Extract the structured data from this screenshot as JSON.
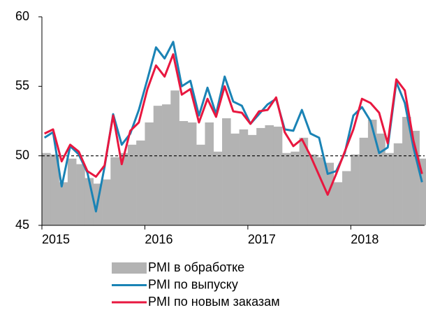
{
  "chart_data": {
    "type": "bar-line",
    "categories": [
      "2015",
      null,
      null,
      null,
      null,
      null,
      null,
      null,
      null,
      null,
      null,
      null,
      "2016",
      null,
      null,
      null,
      null,
      null,
      null,
      null,
      null,
      null,
      null,
      null,
      "2017",
      null,
      null,
      null,
      null,
      null,
      null,
      null,
      null,
      null,
      null,
      null,
      "2018",
      null,
      null,
      null,
      null,
      null,
      null,
      null,
      null
    ],
    "series": [
      {
        "name": "PMI в обработке",
        "type": "bar",
        "color": "#b3b3b3",
        "values": [
          50.2,
          50.1,
          48.1,
          49.8,
          49.4,
          48.4,
          48.0,
          48.3,
          49.9,
          50.2,
          50.8,
          51.1,
          52.4,
          53.6,
          53.7,
          54.7,
          52.5,
          52.4,
          50.8,
          52.4,
          50.3,
          52.7,
          51.6,
          51.9,
          51.5,
          52.0,
          52.2,
          52.1,
          50.2,
          50.3,
          51.3,
          50.1,
          49.9,
          49.5,
          48.1,
          48.9,
          50.1,
          51.3,
          52.6,
          51.6,
          50.2,
          50.9,
          52.8,
          51.8,
          49.8
        ]
      },
      {
        "name": "PMI по выпуску",
        "type": "line",
        "color": "#1a83b5",
        "values": [
          51.3,
          51.7,
          47.8,
          50.7,
          50.1,
          48.8,
          46.0,
          49.2,
          53.0,
          50.8,
          51.6,
          53.3,
          55.5,
          57.8,
          57.0,
          58.2,
          55.0,
          55.4,
          52.9,
          54.9,
          53.0,
          55.7,
          53.9,
          53.6,
          52.3,
          53.0,
          53.7,
          54.1,
          51.9,
          51.8,
          53.3,
          51.6,
          51.3,
          48.7,
          48.9,
          50.2,
          52.9,
          53.5,
          52.5,
          50.2,
          50.6,
          55.3,
          53.8,
          50.6,
          48.1
        ]
      },
      {
        "name": "PMI по новым заказам",
        "type": "line",
        "color": "#e8173f",
        "values": [
          51.6,
          51.9,
          49.6,
          50.8,
          50.3,
          48.9,
          48.5,
          49.3,
          52.9,
          49.4,
          51.8,
          52.4,
          54.8,
          56.5,
          55.7,
          57.3,
          54.4,
          54.8,
          52.4,
          54.1,
          52.8,
          55.0,
          53.2,
          53.1,
          52.3,
          53.2,
          53.3,
          54.2,
          51.7,
          50.7,
          51.2,
          50.0,
          48.6,
          47.2,
          48.7,
          50.3,
          51.9,
          54.1,
          53.8,
          53.1,
          50.9,
          55.5,
          54.7,
          51.1,
          48.7
        ]
      }
    ],
    "ylim": [
      45,
      60
    ],
    "yticks": [
      45,
      50,
      55,
      60
    ],
    "hline": 50,
    "hline_style": "dashed",
    "grid": false
  }
}
